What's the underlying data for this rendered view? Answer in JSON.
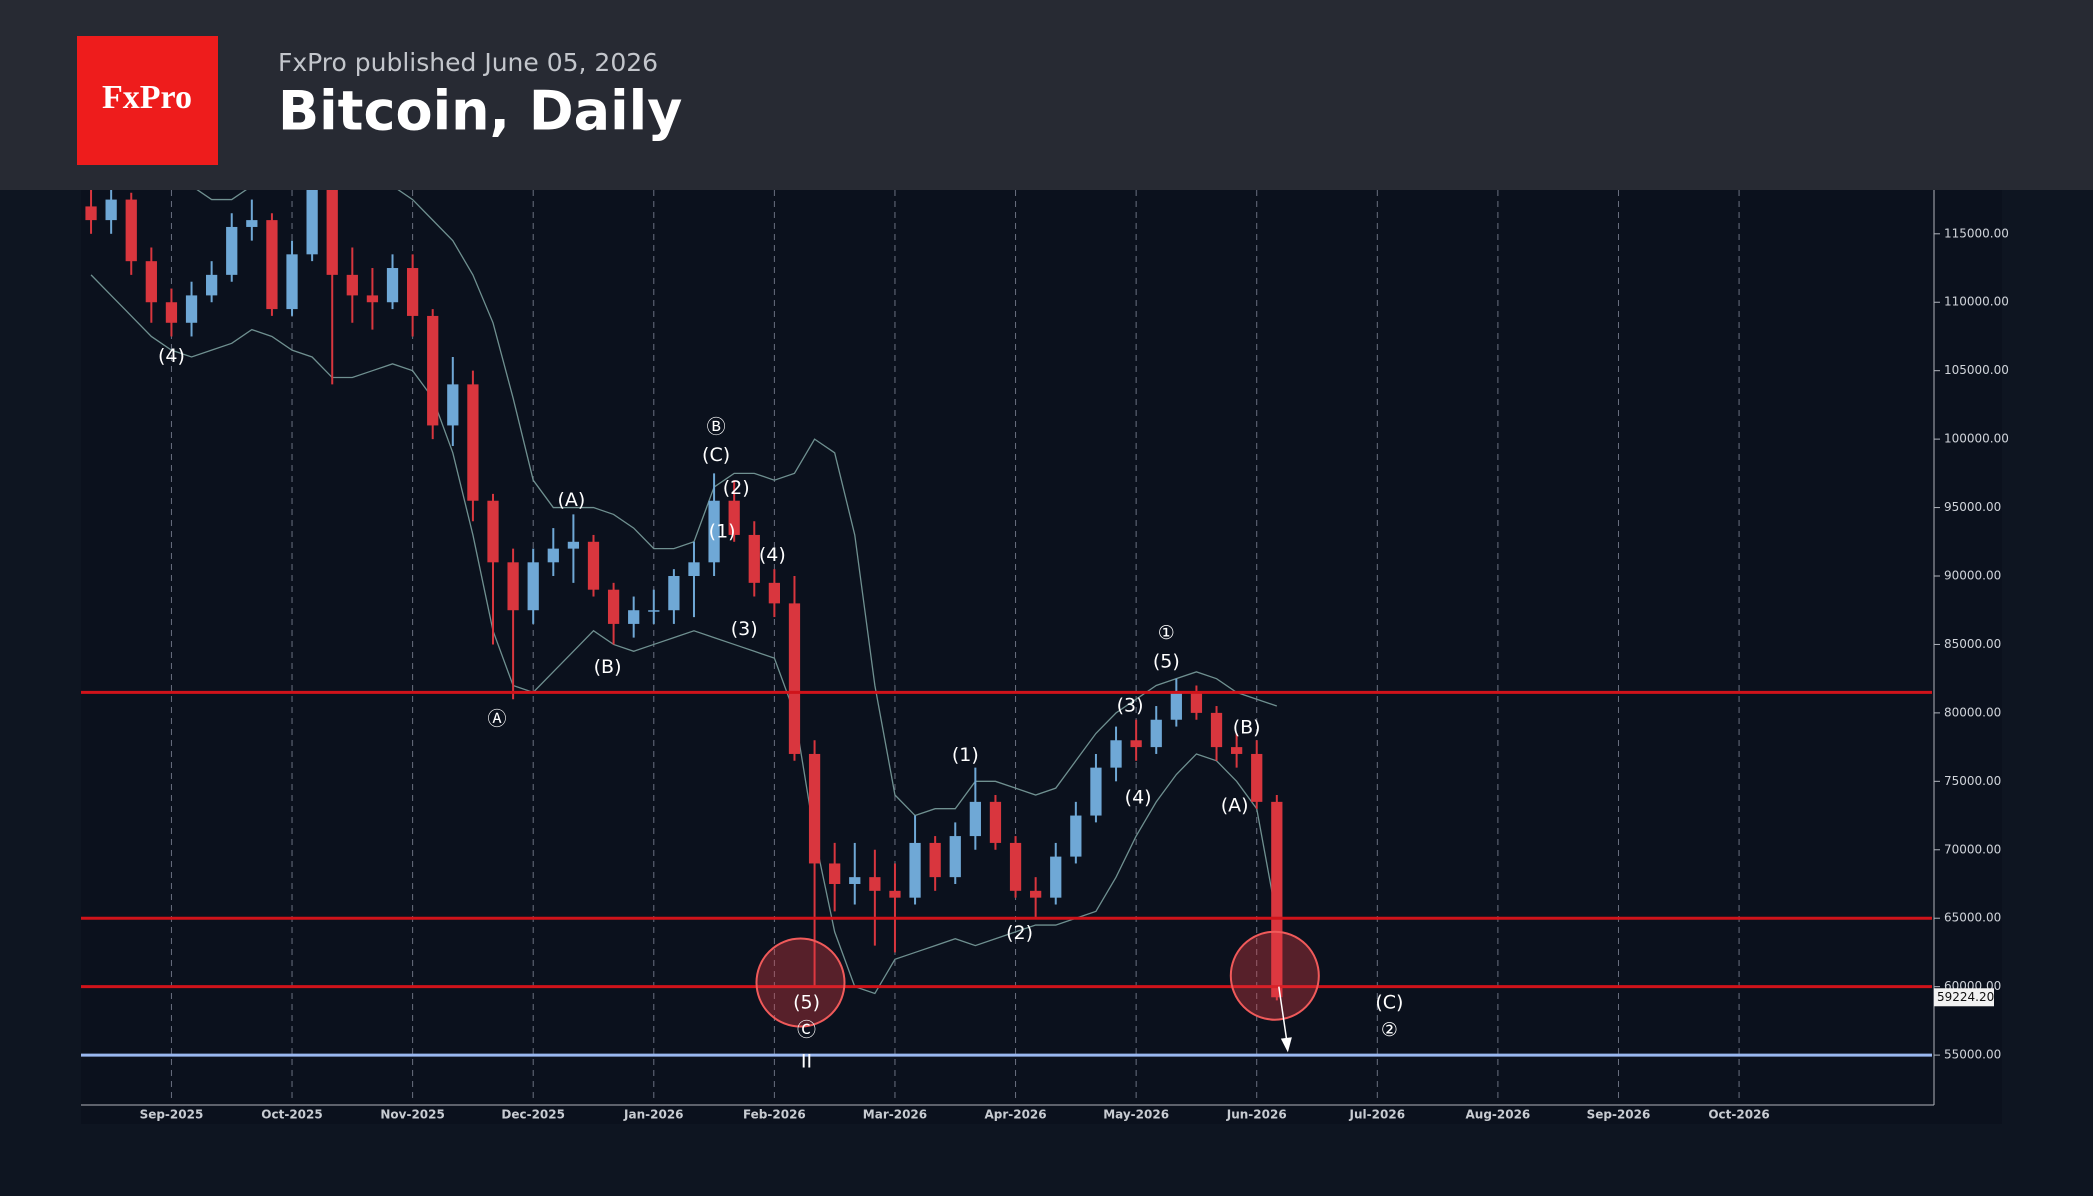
{
  "chart_data": {
    "type": "candlestick",
    "brand": "FxPro",
    "subtitle": "FxPro published June 05, 2026",
    "title": "Bitcoin, Daily",
    "categories": [
      null,
      null,
      null,
      null,
      "Sep-2025",
      null,
      null,
      null,
      null,
      null,
      "Oct-2025",
      null,
      null,
      null,
      null,
      null,
      "Nov-2025",
      null,
      null,
      null,
      null,
      null,
      "Dec-2025",
      null,
      null,
      null,
      null,
      null,
      "Jan-2026",
      null,
      null,
      null,
      null,
      null,
      "Feb-2026",
      null,
      null,
      null,
      null,
      null,
      "Mar-2026",
      null,
      null,
      null,
      null,
      null,
      "Apr-2026",
      null,
      null,
      null,
      null,
      null,
      "May-2026",
      null,
      null,
      null,
      null,
      null,
      "Jun-2026",
      null,
      null,
      null,
      null,
      null,
      "Jul-2026",
      null,
      null,
      null,
      null,
      null,
      "Aug-2026",
      null,
      null,
      null,
      null,
      null,
      "Sep-2026",
      null,
      null,
      null,
      null,
      null,
      "Oct-2026",
      null,
      null,
      null,
      null,
      null,
      null,
      null,
      null,
      null
    ],
    "open": [
      117000,
      116000,
      117500,
      113000,
      110000,
      108500,
      110500,
      112000,
      115500,
      116000,
      109500,
      113500,
      121500,
      112000,
      110500,
      110000,
      112500,
      109000,
      101000,
      104000,
      95500,
      91000,
      87500,
      91000,
      92000,
      92500,
      89000,
      86500,
      87500,
      87500,
      90000,
      91000,
      95500,
      93000,
      89500,
      88000,
      77000,
      69000,
      67500,
      68000,
      67000,
      66500,
      70500,
      68000,
      71000,
      73500,
      70500,
      67000,
      66500,
      69500,
      72500,
      76000,
      78000,
      77500,
      79500,
      81500,
      80000,
      77500,
      77000,
      73500,
      null,
      null,
      null,
      null,
      null,
      null,
      null,
      null,
      null,
      null,
      null,
      null,
      null,
      null,
      null,
      null,
      null,
      null,
      null,
      null,
      null,
      null,
      null,
      null,
      null,
      null,
      null,
      null,
      null,
      null,
      null,
      null
    ],
    "high": [
      118500,
      118500,
      118000,
      114000,
      111000,
      111500,
      113000,
      116500,
      117500,
      116500,
      114500,
      125000,
      122000,
      114000,
      112500,
      113500,
      113500,
      109500,
      106000,
      105000,
      96000,
      92000,
      92000,
      93500,
      94500,
      93000,
      89500,
      88500,
      89000,
      90500,
      92500,
      97500,
      97000,
      94000,
      90500,
      90000,
      78000,
      70500,
      70500,
      70000,
      69000,
      72500,
      71000,
      72000,
      76000,
      74000,
      71000,
      68000,
      70500,
      73500,
      77000,
      79000,
      79500,
      80500,
      82500,
      82000,
      80500,
      78500,
      78000,
      74000,
      null,
      null,
      null,
      null,
      null,
      null,
      null,
      null,
      null,
      null,
      null,
      null,
      null,
      null,
      null,
      null,
      null,
      null,
      null,
      null,
      null,
      null,
      null,
      null,
      null,
      null,
      null,
      null,
      null,
      null,
      null,
      null
    ],
    "low": [
      115000,
      115000,
      112000,
      108500,
      107500,
      107500,
      110000,
      111500,
      114500,
      109000,
      109000,
      113000,
      104000,
      108500,
      108000,
      109500,
      107500,
      100000,
      99500,
      94000,
      85000,
      81000,
      86500,
      90000,
      89500,
      88500,
      85000,
      85500,
      86500,
      86500,
      87000,
      90000,
      92500,
      88500,
      87000,
      76500,
      60000,
      65500,
      66000,
      63000,
      62500,
      66000,
      67000,
      67500,
      70000,
      70000,
      66500,
      65000,
      66000,
      69000,
      72000,
      75000,
      76500,
      77000,
      79000,
      79500,
      76500,
      76000,
      73000,
      59000,
      null,
      null,
      null,
      null,
      null,
      null,
      null,
      null,
      null,
      null,
      null,
      null,
      null,
      null,
      null,
      null,
      null,
      null,
      null,
      null,
      null,
      null,
      null,
      null,
      null,
      null,
      null,
      null,
      null,
      null,
      null,
      null
    ],
    "close": [
      116000,
      117500,
      113000,
      110000,
      108500,
      110500,
      112000,
      115500,
      116000,
      109500,
      113500,
      121500,
      112000,
      110500,
      110000,
      112500,
      109000,
      101000,
      104000,
      95500,
      91000,
      87500,
      91000,
      92000,
      92500,
      89000,
      86500,
      87500,
      87500,
      90000,
      91000,
      95500,
      93000,
      89500,
      88000,
      77000,
      69000,
      67500,
      68000,
      67000,
      66500,
      70500,
      68000,
      71000,
      73500,
      70500,
      67000,
      66500,
      69500,
      72500,
      76000,
      78000,
      77500,
      79500,
      81500,
      80000,
      77500,
      77000,
      73500,
      59224,
      null,
      null,
      null,
      null,
      null,
      null,
      null,
      null,
      null,
      null,
      null,
      null,
      null,
      null,
      null,
      null,
      null,
      null,
      null,
      null,
      null,
      null,
      null,
      null,
      null,
      null,
      null,
      null,
      null,
      null,
      null,
      null
    ],
    "up_color": "#6fa8d6",
    "down_color": "#d9363e",
    "bands": [
      {
        "color": "#6f9090",
        "values": [
          121000,
          120500,
          120000,
          119500,
          119000,
          118500,
          117500,
          117500,
          118500,
          119000,
          119000,
          121000,
          122000,
          121500,
          120000,
          118500,
          117500,
          116000,
          114500,
          112000,
          108500,
          103000,
          97000,
          95000,
          95000,
          95000,
          94500,
          93500,
          92000,
          92000,
          92500,
          96500,
          97500,
          97500,
          97000,
          97500,
          100000,
          99000,
          93000,
          82000,
          74000,
          72500,
          73000,
          73000,
          75000,
          75000,
          74500,
          74000,
          74500,
          76500,
          78500,
          80000,
          81000,
          82000,
          82500,
          83000,
          82500,
          81500,
          81000,
          80500,
          null,
          null,
          null,
          null,
          null,
          null,
          null,
          null,
          null,
          null,
          null,
          null,
          null,
          null,
          null,
          null,
          null,
          null,
          null,
          null,
          null,
          null,
          null,
          null,
          null,
          null,
          null,
          null,
          null,
          null,
          null,
          null
        ]
      },
      {
        "color": "#6f9090",
        "values": [
          112000,
          110500,
          109000,
          107500,
          106500,
          106000,
          106500,
          107000,
          108000,
          107500,
          106500,
          106000,
          104500,
          104500,
          105000,
          105500,
          105000,
          103000,
          99000,
          93000,
          86000,
          82000,
          81500,
          83000,
          84500,
          86000,
          85000,
          84500,
          85000,
          85500,
          86000,
          85500,
          85000,
          84500,
          84000,
          80000,
          71000,
          64000,
          60000,
          59500,
          62000,
          62500,
          63000,
          63500,
          63000,
          63500,
          64000,
          64500,
          64500,
          65000,
          65500,
          68000,
          71000,
          73500,
          75500,
          77000,
          76500,
          75000,
          73000,
          65000,
          null,
          null,
          null,
          null,
          null,
          null,
          null,
          null,
          null,
          null,
          null,
          null,
          null,
          null,
          null,
          null,
          null,
          null,
          null,
          null,
          null,
          null,
          null,
          null,
          null,
          null,
          null,
          null,
          null,
          null,
          null,
          null
        ]
      }
    ],
    "hlines": [
      {
        "value": 81500,
        "color": "#d0131a"
      },
      {
        "value": 65000,
        "color": "#d0131a"
      },
      {
        "value": 60000,
        "color": "#d0131a"
      },
      {
        "value": 55000,
        "color": "#9ab8f0"
      }
    ],
    "last_price": {
      "value": 59224.2,
      "label": "59224.20"
    },
    "annotations": [
      "(4)",
      "Ⓑ",
      "(C)",
      "(2)",
      "(A)",
      "(1)",
      "(4)",
      "(3)",
      "(B)",
      "Ⓐ",
      "①",
      "(5)",
      "(3)",
      "(B)",
      "(1)",
      "(4)",
      "(A)",
      "(2)",
      "(5)",
      "Ⓒ",
      "II",
      "(C)",
      "②"
    ],
    "ylim": [
      51500,
      118200
    ],
    "yticks": [
      {
        "value": 55000,
        "label": "55000.00"
      },
      {
        "value": 60000,
        "label": "60000.00"
      },
      {
        "value": 65000,
        "label": "65000.00"
      },
      {
        "value": 70000,
        "label": "70000.00"
      },
      {
        "value": 75000,
        "label": "75000.00"
      },
      {
        "value": 80000,
        "label": "80000.00"
      },
      {
        "value": 85000,
        "label": "85000.00"
      },
      {
        "value": 90000,
        "label": "90000.00"
      },
      {
        "value": 95000,
        "label": "95000.00"
      },
      {
        "value": 100000,
        "label": "100000.00"
      },
      {
        "value": 105000,
        "label": "105000.00"
      },
      {
        "value": 110000,
        "label": "110000.00"
      },
      {
        "value": 115000,
        "label": "115000.00"
      }
    ],
    "grid": true
  }
}
